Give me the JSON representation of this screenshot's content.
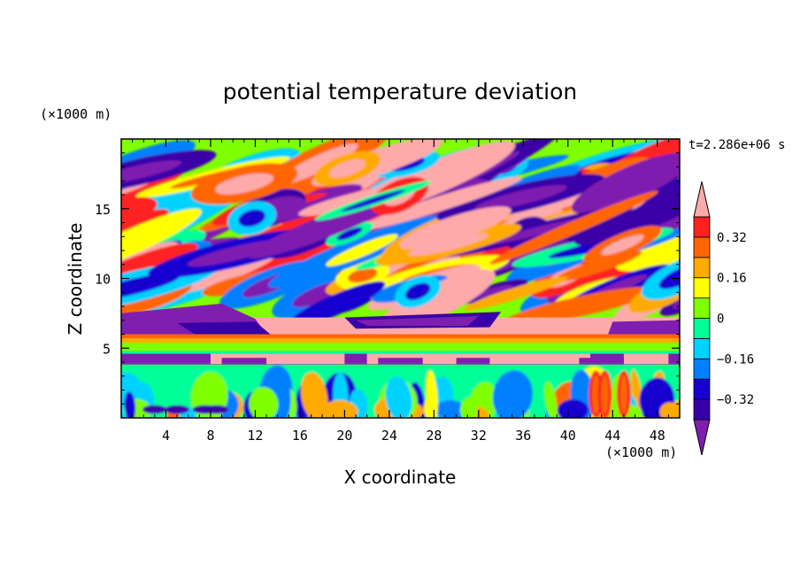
{
  "chart_data": {
    "type": "heatmap",
    "title": "potential temperature deviation",
    "xlabel": "X coordinate",
    "ylabel": "Z coordinate",
    "x_unit": "(×1000 m)",
    "z_unit": "(×1000 m)",
    "time_label": "t=2.286e+06 s",
    "xlim": [
      0,
      50
    ],
    "zlim": [
      0,
      20
    ],
    "x_ticks": [
      4,
      8,
      12,
      16,
      20,
      24,
      28,
      32,
      36,
      40,
      44,
      48
    ],
    "x_tick_labels": [
      "4",
      "8",
      "12",
      "16",
      "20",
      "24",
      "28",
      "32",
      "36",
      "40",
      "44",
      "48"
    ],
    "z_ticks": [
      5,
      10,
      15
    ],
    "z_tick_labels": [
      "5",
      "10",
      "15"
    ],
    "colorbar": {
      "levels": [
        -0.4,
        -0.32,
        -0.24,
        -0.16,
        -0.08,
        0,
        0.08,
        0.16,
        0.24,
        0.32,
        0.4
      ],
      "labels": [
        "0.32",
        "0.16",
        "0",
        "−0.16",
        "−0.32"
      ],
      "label_values": [
        0.32,
        0.16,
        0,
        -0.16,
        -0.32
      ],
      "colors": [
        "#7f1fb0",
        "#3a00a8",
        "#1500d0",
        "#0080ff",
        "#00d2ff",
        "#00ff99",
        "#7fff00",
        "#ffff00",
        "#ffaa00",
        "#ff6600",
        "#ff2020",
        "#ffaaaa"
      ],
      "extend": "both"
    },
    "features": [
      {
        "name": "stratified upper layer",
        "z_range": [
          8,
          19.5
        ],
        "pattern": "tilted alternating bands"
      },
      {
        "name": "warm inversion layer",
        "z_range": [
          5.3,
          7.5
        ],
        "value_sign": "positive"
      },
      {
        "name": "cold layer",
        "z_range": [
          3.8,
          4.6
        ],
        "value_sign": "negative"
      },
      {
        "name": "boundary layer convection",
        "z_range": [
          0,
          3.8
        ],
        "pattern": "vertical plumes"
      }
    ]
  }
}
